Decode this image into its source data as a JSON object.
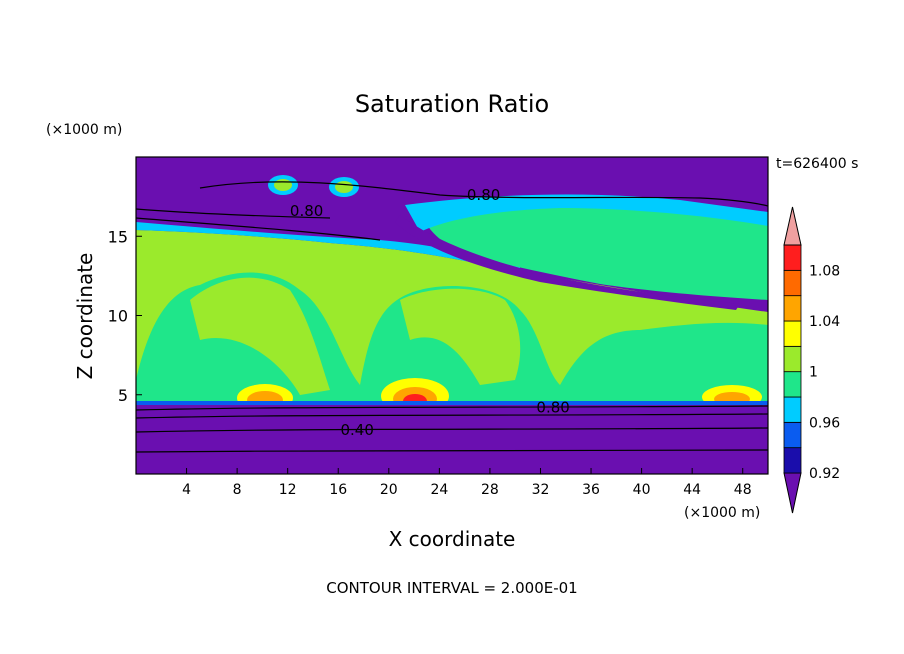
{
  "chart_data": {
    "type": "heatmap",
    "title": "Saturation Ratio",
    "xlabel": "X coordinate",
    "ylabel": "Z coordinate",
    "x_unit": "(×1000 m)",
    "y_unit": "(×1000 m)",
    "time_label": "t=626400 s",
    "footer": "CONTOUR INTERVAL = 2.000E-01",
    "xlim": [
      0,
      50
    ],
    "ylim": [
      0,
      20
    ],
    "x_ticks": [
      4,
      8,
      12,
      16,
      20,
      24,
      28,
      32,
      36,
      40,
      44,
      48
    ],
    "y_ticks": [
      5,
      10,
      15
    ],
    "contour_labels": [
      {
        "text": "0.80",
        "x": 27.5,
        "z": 17.4
      },
      {
        "text": "0.80",
        "x": 13.5,
        "z": 16.4
      },
      {
        "text": "0.80",
        "x": 33.0,
        "z": 4.0
      },
      {
        "text": "0.40",
        "x": 17.5,
        "z": 2.6
      }
    ],
    "colorbar": {
      "levels": [
        0.92,
        0.94,
        0.96,
        0.98,
        1.0,
        1.02,
        1.04,
        1.06,
        1.08,
        1.1
      ],
      "tick_labels": [
        "0.92",
        "0.96",
        "1",
        "1.04",
        "1.08"
      ],
      "colors": [
        "#6a0fb0",
        "#1a0dab",
        "#0a5cf0",
        "#00ccff",
        "#1fe68a",
        "#9bea2c",
        "#ffff00",
        "#ffa500",
        "#ff6a00",
        "#ff1e1e",
        "#f0a0a0"
      ]
    }
  }
}
